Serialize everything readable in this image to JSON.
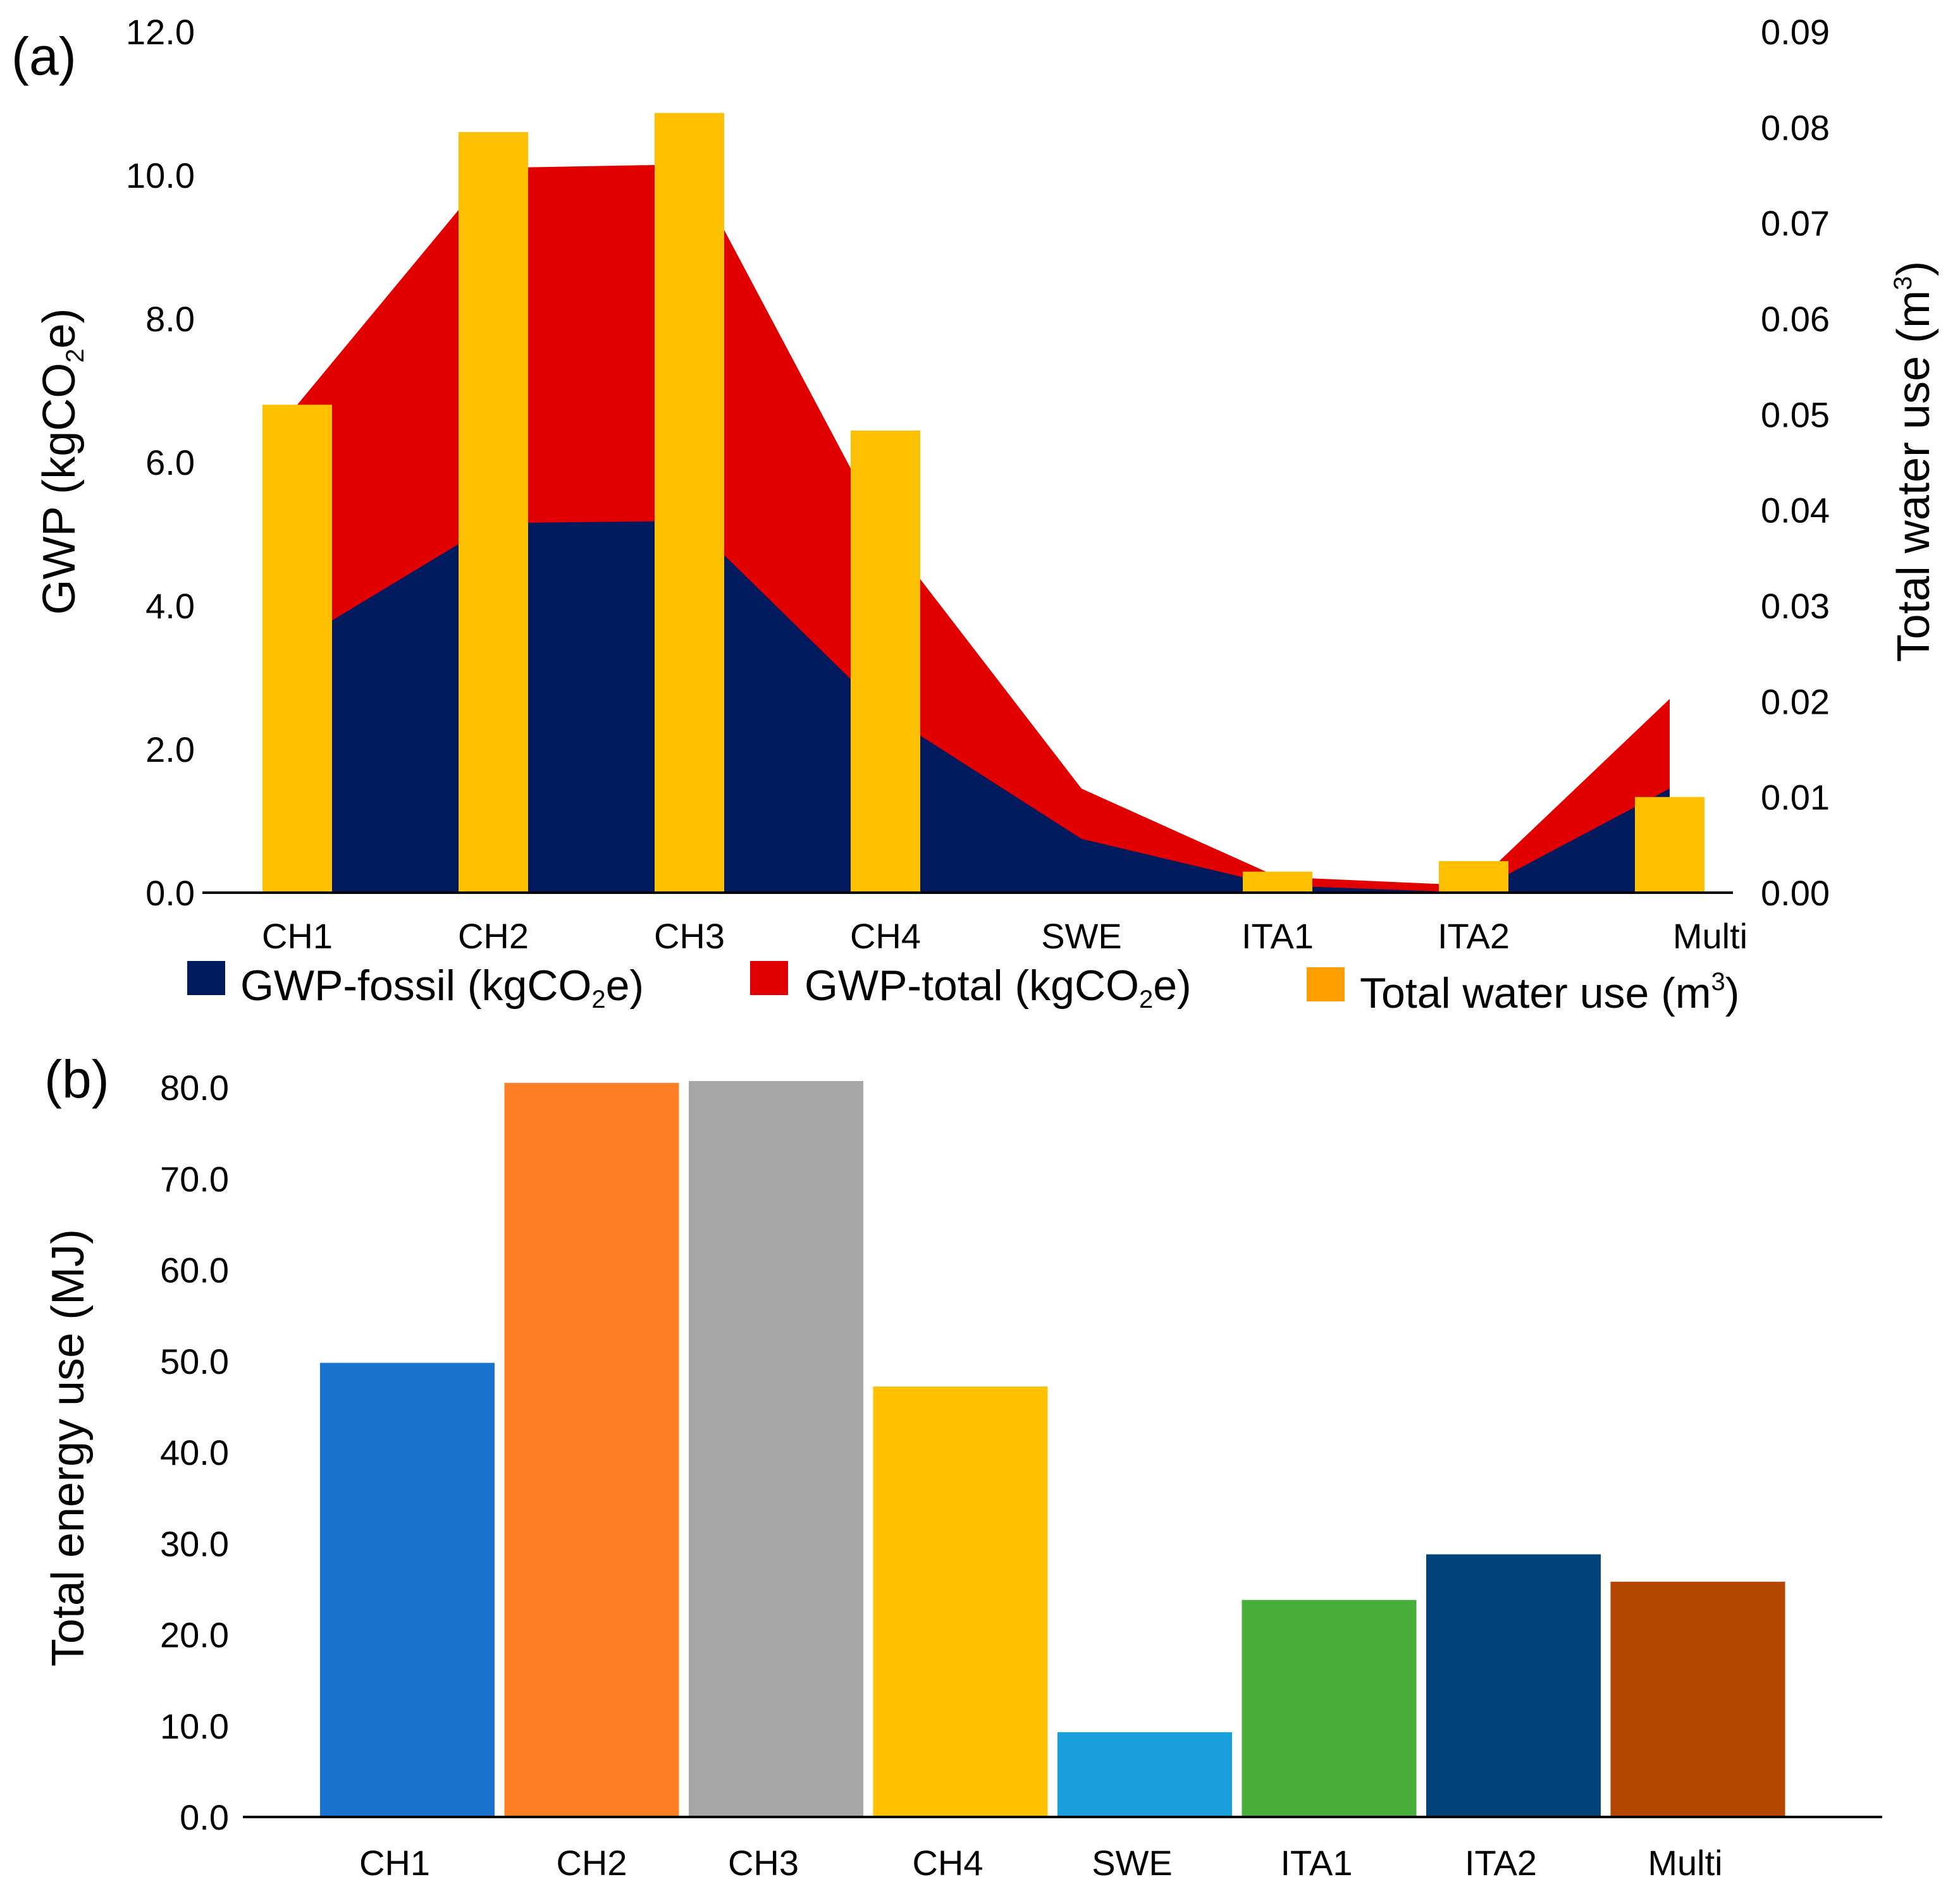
{
  "chart_data": [
    {
      "panel_label": "(a)",
      "type": "area",
      "categories": [
        "CH1",
        "CH2",
        "CH3",
        "CH4",
        "SWE",
        "ITA1",
        "ITA2",
        "Multi"
      ],
      "ylabel": {
        "main": "GWP (kgCO",
        "sub": "2",
        "tail": "e)"
      },
      "y2label": {
        "main": "Total water use (m",
        "sup": "3",
        "tail": ")"
      },
      "ylim": [
        0,
        12
      ],
      "yticks": [
        "0.0",
        "2.0",
        "4.0",
        "6.0",
        "8.0",
        "10.0",
        "12.0"
      ],
      "y2lim": [
        0,
        0.09
      ],
      "y2ticks": [
        "0.00",
        "0.01",
        "0.02",
        "0.03",
        "0.04",
        "0.05",
        "0.06",
        "0.07",
        "0.08",
        "0.09"
      ],
      "series": [
        {
          "name": "GWP-fossil (kgCO",
          "name_sub": "2",
          "name_tail": "e)",
          "type": "area",
          "axis": "left",
          "color": "#001A5E",
          "values": [
            3.5,
            5.15,
            5.18,
            2.5,
            0.75,
            0.1,
            0.0,
            1.45
          ]
        },
        {
          "name": "GWP-total (kgCO",
          "name_sub": "2",
          "name_tail": "e)",
          "type": "area",
          "axis": "left",
          "color": "#E00000",
          "values": [
            6.8,
            10.1,
            10.15,
            5.0,
            1.45,
            0.22,
            0.1,
            2.7
          ]
        },
        {
          "name": "Total water use (m",
          "name_sup": "3",
          "name_tail": ")",
          "type": "bar",
          "axis": "right",
          "color": "#FFC000",
          "legend_color": "#FFA000",
          "values": [
            0.051,
            0.0795,
            0.0815,
            0.0483,
            0.0,
            0.0022,
            0.0033,
            0.01
          ]
        }
      ],
      "legend_position": "bottom"
    },
    {
      "panel_label": "(b)",
      "type": "bar",
      "categories": [
        "CH1",
        "CH2",
        "CH3",
        "CH4",
        "SWE",
        "ITA1",
        "ITA2",
        "Multi"
      ],
      "ylabel": "Total energy use (MJ)",
      "ylim": [
        0,
        80
      ],
      "yticks": [
        "0.0",
        "10.0",
        "20.0",
        "30.0",
        "40.0",
        "50.0",
        "60.0",
        "70.0",
        "80.0"
      ],
      "values": [
        49.8,
        80.5,
        80.7,
        47.2,
        9.3,
        23.8,
        28.8,
        25.8
      ],
      "colors": [
        "#1874CD",
        "#FF7F27",
        "#A6A6A6",
        "#FFC000",
        "#1A9FDA",
        "#47AE3A",
        "#00427A",
        "#B34700"
      ]
    }
  ]
}
